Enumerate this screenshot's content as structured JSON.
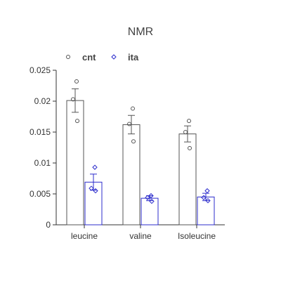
{
  "chart_data": {
    "type": "bar",
    "title": "NMR",
    "xlabel": "",
    "ylabel": "",
    "categories": [
      "leucine",
      "valine",
      "Isoleucine"
    ],
    "ylim": [
      0,
      0.025
    ],
    "yticks": [
      "0",
      "0.005",
      "0.01",
      "0.015",
      "0.02",
      "0.025"
    ],
    "ytick_values": [
      0,
      0.005,
      0.01,
      0.015,
      0.02,
      0.025
    ],
    "legend_position": "top-left",
    "grid": false,
    "series": [
      {
        "name": "cnt",
        "color": "#555555",
        "marker": "circle",
        "values": [
          0.0201,
          0.0162,
          0.0147
        ],
        "errors": [
          0.0019,
          0.0015,
          0.0013
        ],
        "points": [
          [
            0.0232,
            0.0203,
            0.0168
          ],
          [
            0.0188,
            0.0163,
            0.0135
          ],
          [
            0.0168,
            0.015,
            0.0124
          ]
        ]
      },
      {
        "name": "ita",
        "color": "#2d2dcc",
        "marker": "diamond",
        "values": [
          0.0069,
          0.0043,
          0.0045
        ],
        "errors": [
          0.0013,
          0.0004,
          0.0006
        ],
        "points": [
          [
            0.0093,
            0.0059,
            0.0055
          ],
          [
            0.0047,
            0.0044,
            0.0038
          ],
          [
            0.0055,
            0.0044,
            0.0039
          ]
        ]
      }
    ]
  }
}
